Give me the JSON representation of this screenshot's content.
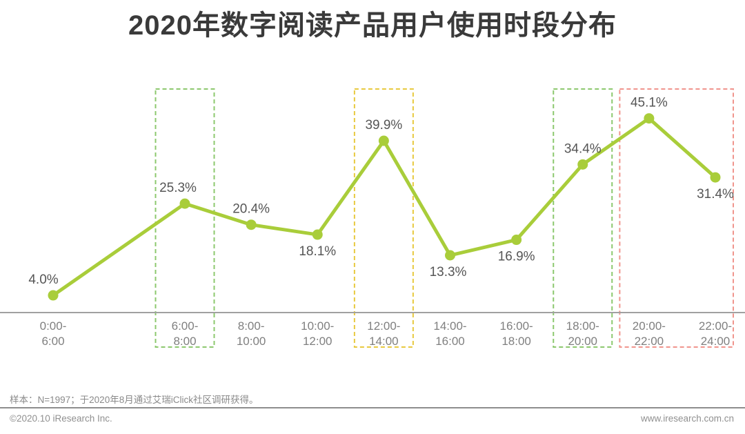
{
  "chart_data": {
    "type": "line",
    "title": "2020年数字阅读产品用户使用时段分布",
    "xlabel": "",
    "ylabel": "",
    "value_suffix": "%",
    "ylim": [
      0,
      50
    ],
    "grid": false,
    "legend": null,
    "categories": [
      "0:00-\n6:00",
      "6:00-\n8:00",
      "8:00-\n10:00",
      "10:00-\n12:00",
      "12:00-\n14:00",
      "14:00-\n16:00",
      "16:00-\n18:00",
      "18:00-\n20:00",
      "20:00-\n22:00",
      "22:00-\n24:00"
    ],
    "values": [
      4.0,
      25.3,
      20.4,
      18.1,
      39.9,
      13.3,
      16.9,
      34.4,
      45.1,
      31.4
    ],
    "label_positions": [
      "above",
      "above",
      "above",
      "below",
      "above",
      "below",
      "below",
      "above",
      "above",
      "below"
    ],
    "line_color": "#a9cd3a",
    "point_color": "#a9cd3a",
    "data_label_color": "#555555",
    "axis_line_color": "#a0a0a0",
    "tick_label_color": "#7f7f7f",
    "highlight_boxes": [
      {
        "range_label": "6:00-8:00",
        "from": 1,
        "to": 1,
        "color": "#8cc86e"
      },
      {
        "range_label": "12:00-14:00",
        "from": 4,
        "to": 4,
        "color": "#e8c93f"
      },
      {
        "range_label": "18:00-20:00",
        "from": 7,
        "to": 7,
        "color": "#8cc86e"
      },
      {
        "range_label": "20:00-24:00",
        "from": 8,
        "to": 9,
        "color": "#f0948c"
      }
    ]
  },
  "footer": {
    "sample_note": "样本：N=1997；于2020年8月通过艾瑞iClick社区调研获得。",
    "copyright": "©2020.10 iResearch Inc.",
    "website": "www.iresearch.com.cn"
  }
}
